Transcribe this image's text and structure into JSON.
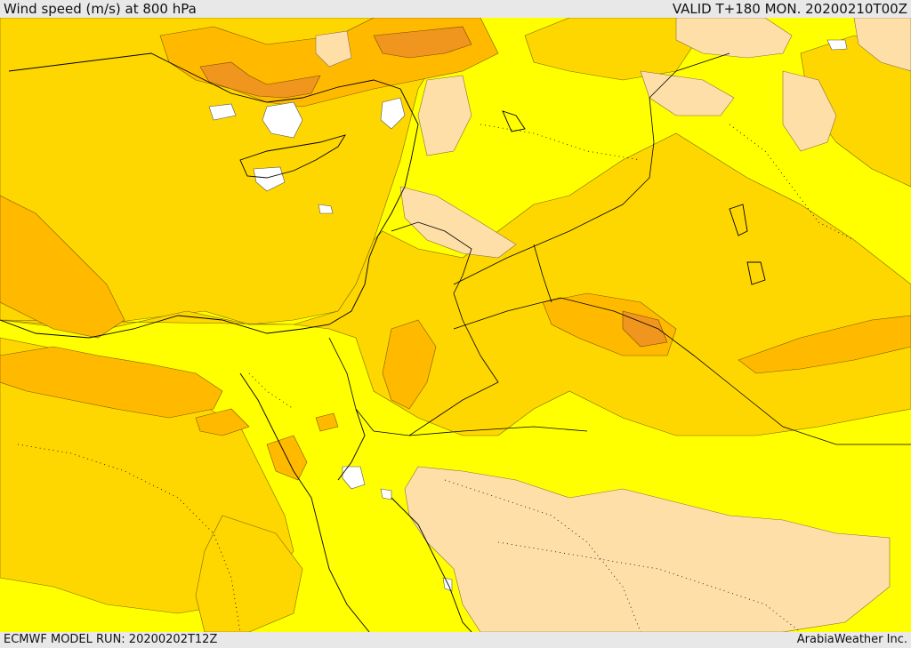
{
  "header": {
    "title": "Wind speed (m/s) at 800 hPa",
    "valid": "VALID T+180 MON. 20200210T00Z"
  },
  "footer": {
    "model_run": "ECMWF MODEL RUN: 20200202T12Z",
    "credit": "ArabiaWeather Inc."
  },
  "colors": {
    "calm": "#ffffff",
    "light": "#ffdfa8",
    "moderate": "#ffff00",
    "fresh": "#ffd700",
    "strong": "#ffba00",
    "very_strong": "#f0961e",
    "borders": "#000000"
  }
}
